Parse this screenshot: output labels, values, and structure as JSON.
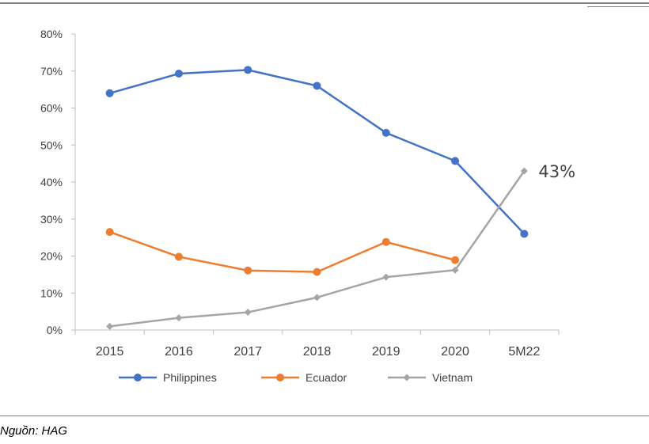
{
  "chart_data": {
    "type": "line",
    "categories": [
      "2015",
      "2016",
      "2017",
      "2018",
      "2019",
      "2020",
      "5M22"
    ],
    "ylim": [
      0,
      80
    ],
    "yticks": [
      "0%",
      "10%",
      "20%",
      "30%",
      "40%",
      "50%",
      "60%",
      "70%",
      "80%"
    ],
    "series": [
      {
        "name": "Philippines",
        "color": "#4472C4",
        "marker": "circle",
        "values": [
          64,
          69.3,
          70.3,
          66,
          53.3,
          45.7,
          26
        ]
      },
      {
        "name": "Ecuador",
        "color": "#ED7D31",
        "marker": "circle",
        "values": [
          26.5,
          19.8,
          16.1,
          15.7,
          23.8,
          18.9,
          null
        ]
      },
      {
        "name": "Vietnam",
        "color": "#A5A5A5",
        "marker": "diamond",
        "values": [
          1,
          3.3,
          4.8,
          8.8,
          14.3,
          16.2,
          43
        ]
      }
    ],
    "annotations": [
      {
        "series": "Vietnam",
        "category": "5M22",
        "text": "43%"
      }
    ],
    "legend_position": "bottom",
    "grid": false
  },
  "source": "Nguồn: HAG"
}
